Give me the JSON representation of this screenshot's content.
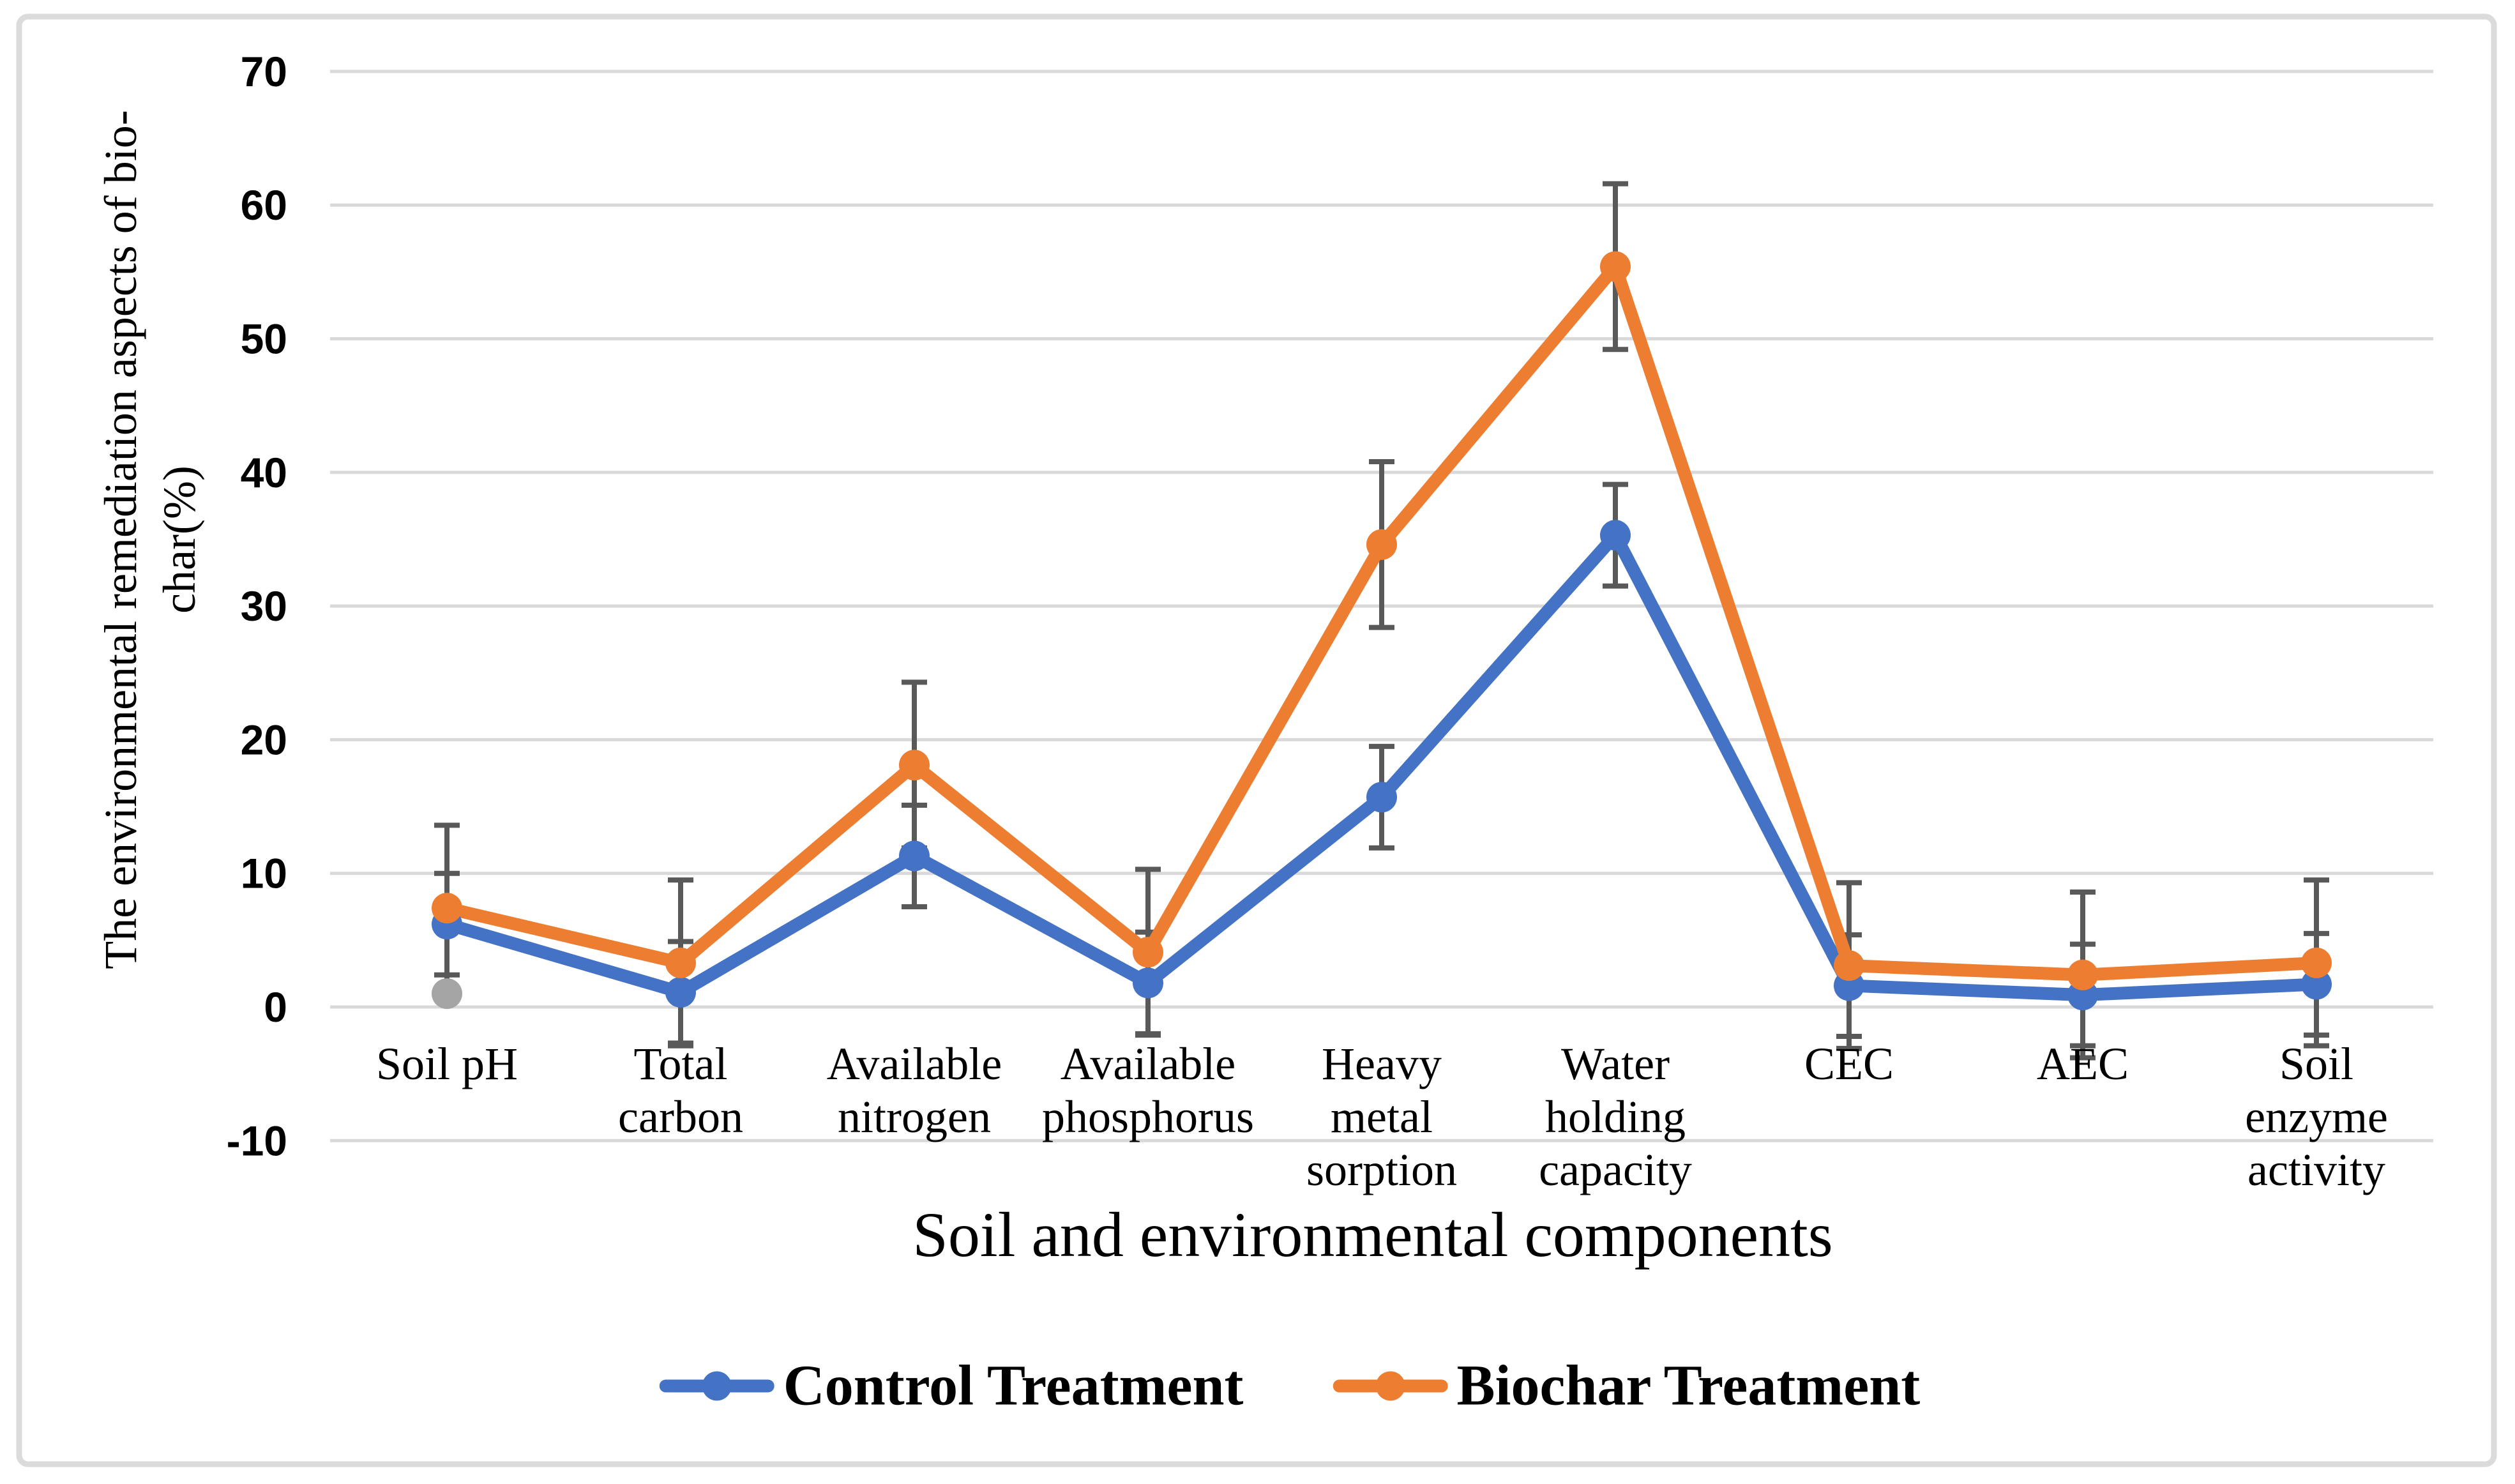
{
  "figure": {
    "background": "#FFFFFF",
    "border_color": "#DBDBDB"
  },
  "chart_data": {
    "type": "line",
    "title": "",
    "xlabel": "Soil and environmental components",
    "ylabel": "The environmental remediation aspects of bio-\nchar(%)",
    "categories": [
      "Soil pH",
      "Total carbon",
      "Available nitrogen",
      "Available phosphorus",
      "Heavy metal sorption",
      "Water holding capacity",
      "CEC",
      "AEC",
      "Soil enzyme activity"
    ],
    "category_label_lines": [
      [
        "Soil pH"
      ],
      [
        "Total",
        "carbon"
      ],
      [
        "Available",
        "nitrogen"
      ],
      [
        "Available",
        "phosphorus"
      ],
      [
        "Heavy",
        "metal",
        "sorption"
      ],
      [
        "Water",
        "holding",
        "capacity"
      ],
      [
        "CEC"
      ],
      [
        "AEC"
      ],
      [
        "Soil",
        "enzyme",
        "activity"
      ]
    ],
    "ylim": [
      -10,
      70
    ],
    "ytick_step": 10,
    "yticks": [
      70,
      60,
      50,
      40,
      30,
      20,
      10,
      0,
      -10
    ],
    "grid": true,
    "gridline_color": "#D9D9D9",
    "error_bar_color": "#595959",
    "legend_position": "bottom",
    "series": [
      {
        "name": "Control Treatment",
        "color": "#4472C4",
        "marker": "circle",
        "values": [
          6.2,
          1.1,
          11.3,
          1.8,
          15.7,
          35.3,
          1.6,
          0.9,
          1.7
        ],
        "error_bar": 3.8
      },
      {
        "name": "Biochar Treatment",
        "color": "#ED7D31",
        "marker": "circle",
        "values": [
          7.4,
          3.3,
          18.1,
          4.1,
          34.6,
          55.4,
          3.1,
          2.4,
          3.3
        ],
        "error_bar": 6.2
      }
    ],
    "stray_point": {
      "category": "Soil pH",
      "category_index": 0,
      "value": 1.0,
      "color": "#A5A5A5"
    }
  }
}
